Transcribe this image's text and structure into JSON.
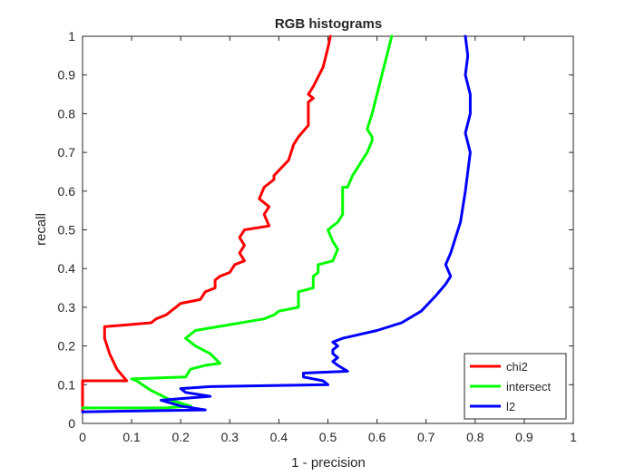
{
  "chart_data": {
    "type": "line",
    "title": "RGB histograms",
    "xlabel": "1 - precision",
    "ylabel": "recall",
    "xlim": [
      0,
      1
    ],
    "ylim": [
      0,
      1
    ],
    "xticks": [
      "0",
      "0.1",
      "0.2",
      "0.3",
      "0.4",
      "0.5",
      "0.6",
      "0.7",
      "0.8",
      "0.9",
      "1"
    ],
    "yticks": [
      "0",
      "0.1",
      "0.2",
      "0.3",
      "0.4",
      "0.5",
      "0.6",
      "0.7",
      "0.8",
      "0.9",
      "1"
    ],
    "grid": false,
    "legend_position": "bottom-right",
    "series": [
      {
        "name": "chi2",
        "color": "#ff0000",
        "points": [
          [
            0.0,
            0.03
          ],
          [
            0.0,
            0.11
          ],
          [
            0.09,
            0.11
          ],
          [
            0.09,
            0.11
          ],
          [
            0.07,
            0.14
          ],
          [
            0.055,
            0.18
          ],
          [
            0.045,
            0.22
          ],
          [
            0.045,
            0.25
          ],
          [
            0.14,
            0.26
          ],
          [
            0.15,
            0.27
          ],
          [
            0.17,
            0.28
          ],
          [
            0.18,
            0.29
          ],
          [
            0.19,
            0.3
          ],
          [
            0.2,
            0.31
          ],
          [
            0.24,
            0.32
          ],
          [
            0.25,
            0.34
          ],
          [
            0.27,
            0.35
          ],
          [
            0.27,
            0.37
          ],
          [
            0.28,
            0.38
          ],
          [
            0.3,
            0.39
          ],
          [
            0.31,
            0.41
          ],
          [
            0.33,
            0.42
          ],
          [
            0.32,
            0.44
          ],
          [
            0.33,
            0.46
          ],
          [
            0.32,
            0.48
          ],
          [
            0.33,
            0.5
          ],
          [
            0.38,
            0.51
          ],
          [
            0.37,
            0.54
          ],
          [
            0.38,
            0.56
          ],
          [
            0.36,
            0.58
          ],
          [
            0.37,
            0.61
          ],
          [
            0.39,
            0.63
          ],
          [
            0.39,
            0.64
          ],
          [
            0.42,
            0.68
          ],
          [
            0.43,
            0.72
          ],
          [
            0.44,
            0.74
          ],
          [
            0.46,
            0.77
          ],
          [
            0.46,
            0.81
          ],
          [
            0.46,
            0.83
          ],
          [
            0.47,
            0.84
          ],
          [
            0.46,
            0.85
          ],
          [
            0.47,
            0.87
          ],
          [
            0.49,
            0.92
          ],
          [
            0.5,
            0.97
          ],
          [
            0.505,
            1.0
          ]
        ]
      },
      {
        "name": "intersect",
        "color": "#00ff00",
        "points": [
          [
            0.0,
            0.04
          ],
          [
            0.17,
            0.04
          ],
          [
            0.22,
            0.045
          ],
          [
            0.18,
            0.06
          ],
          [
            0.14,
            0.085
          ],
          [
            0.11,
            0.11
          ],
          [
            0.1,
            0.115
          ],
          [
            0.21,
            0.12
          ],
          [
            0.22,
            0.14
          ],
          [
            0.25,
            0.15
          ],
          [
            0.28,
            0.155
          ],
          [
            0.26,
            0.18
          ],
          [
            0.23,
            0.2
          ],
          [
            0.21,
            0.22
          ],
          [
            0.23,
            0.24
          ],
          [
            0.37,
            0.27
          ],
          [
            0.39,
            0.28
          ],
          [
            0.4,
            0.29
          ],
          [
            0.44,
            0.3
          ],
          [
            0.44,
            0.33
          ],
          [
            0.44,
            0.34
          ],
          [
            0.47,
            0.35
          ],
          [
            0.47,
            0.38
          ],
          [
            0.48,
            0.39
          ],
          [
            0.48,
            0.41
          ],
          [
            0.51,
            0.42
          ],
          [
            0.52,
            0.45
          ],
          [
            0.51,
            0.47
          ],
          [
            0.5,
            0.5
          ],
          [
            0.52,
            0.52
          ],
          [
            0.53,
            0.54
          ],
          [
            0.53,
            0.6
          ],
          [
            0.53,
            0.61
          ],
          [
            0.54,
            0.61
          ],
          [
            0.55,
            0.64
          ],
          [
            0.56,
            0.66
          ],
          [
            0.58,
            0.7
          ],
          [
            0.59,
            0.73
          ],
          [
            0.59,
            0.74
          ],
          [
            0.58,
            0.76
          ],
          [
            0.59,
            0.8
          ],
          [
            0.6,
            0.85
          ],
          [
            0.61,
            0.9
          ],
          [
            0.62,
            0.95
          ],
          [
            0.63,
            1.0
          ]
        ]
      },
      {
        "name": "l2",
        "color": "#0000ff",
        "points": [
          [
            0.0,
            0.03
          ],
          [
            0.25,
            0.035
          ],
          [
            0.2,
            0.045
          ],
          [
            0.16,
            0.06
          ],
          [
            0.26,
            0.07
          ],
          [
            0.21,
            0.08
          ],
          [
            0.2,
            0.09
          ],
          [
            0.26,
            0.095
          ],
          [
            0.5,
            0.1
          ],
          [
            0.49,
            0.11
          ],
          [
            0.45,
            0.12
          ],
          [
            0.45,
            0.13
          ],
          [
            0.54,
            0.135
          ],
          [
            0.52,
            0.15
          ],
          [
            0.51,
            0.16
          ],
          [
            0.52,
            0.17
          ],
          [
            0.51,
            0.18
          ],
          [
            0.51,
            0.19
          ],
          [
            0.52,
            0.2
          ],
          [
            0.51,
            0.21
          ],
          [
            0.53,
            0.22
          ],
          [
            0.6,
            0.24
          ],
          [
            0.65,
            0.26
          ],
          [
            0.69,
            0.29
          ],
          [
            0.72,
            0.33
          ],
          [
            0.74,
            0.36
          ],
          [
            0.75,
            0.38
          ],
          [
            0.74,
            0.41
          ],
          [
            0.75,
            0.44
          ],
          [
            0.77,
            0.52
          ],
          [
            0.78,
            0.6
          ],
          [
            0.785,
            0.65
          ],
          [
            0.79,
            0.7
          ],
          [
            0.78,
            0.75
          ],
          [
            0.79,
            0.8
          ],
          [
            0.79,
            0.85
          ],
          [
            0.78,
            0.9
          ],
          [
            0.785,
            0.95
          ],
          [
            0.78,
            1.0
          ]
        ]
      }
    ]
  }
}
